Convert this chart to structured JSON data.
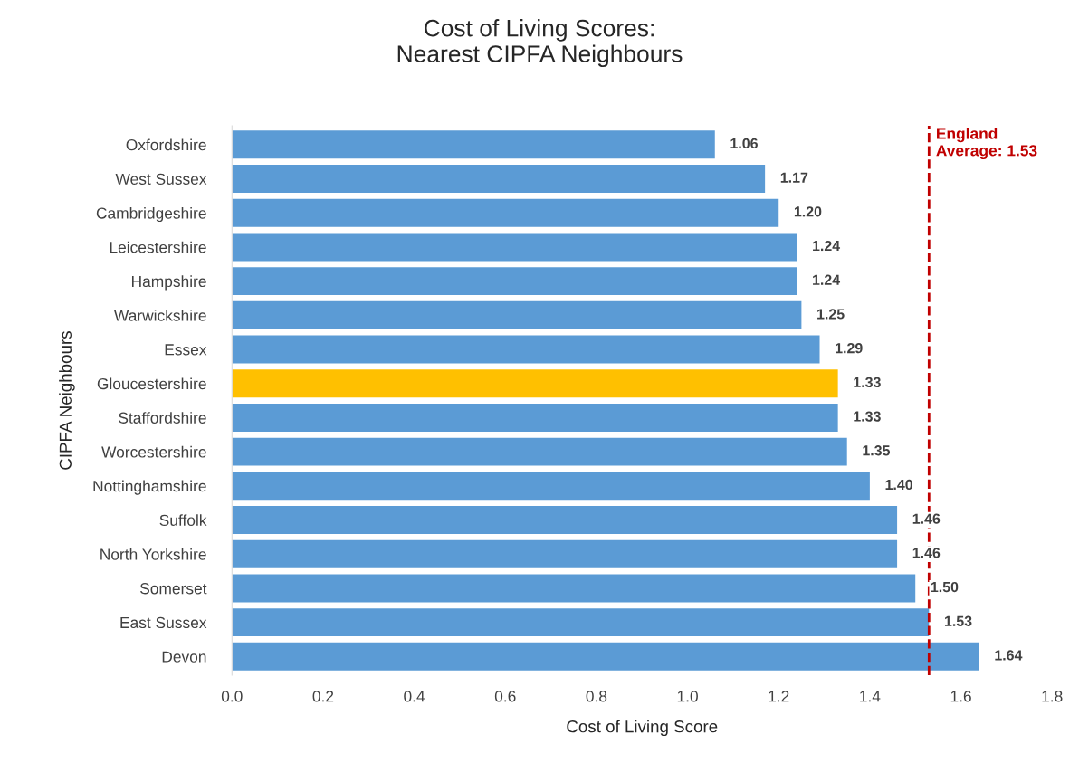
{
  "chart_data": {
    "type": "bar",
    "orientation": "horizontal",
    "title": "Cost of Living Scores:\nNearest CIPFA Neighbours",
    "xlabel": "Cost of Living Score",
    "ylabel": "CIPFA Neighbours",
    "categories": [
      "Oxfordshire",
      "West Sussex",
      "Cambridgeshire",
      "Leicestershire",
      "Hampshire",
      "Warwickshire",
      "Essex",
      "Gloucestershire",
      "Staffordshire",
      "Worcestershire",
      "Nottinghamshire",
      "Suffolk",
      "North Yorkshire",
      "Somerset",
      "East Sussex",
      "Devon"
    ],
    "values": [
      1.06,
      1.17,
      1.2,
      1.24,
      1.24,
      1.25,
      1.29,
      1.33,
      1.33,
      1.35,
      1.4,
      1.46,
      1.46,
      1.5,
      1.53,
      1.64
    ],
    "colors": [
      "#5b9bd5",
      "#5b9bd5",
      "#5b9bd5",
      "#5b9bd5",
      "#5b9bd5",
      "#5b9bd5",
      "#5b9bd5",
      "#ffc000",
      "#5b9bd5",
      "#5b9bd5",
      "#5b9bd5",
      "#5b9bd5",
      "#5b9bd5",
      "#5b9bd5",
      "#5b9bd5",
      "#5b9bd5"
    ],
    "value_labels": [
      "1.06",
      "1.17",
      "1.20",
      "1.24",
      "1.24",
      "1.25",
      "1.29",
      "1.33",
      "1.33",
      "1.35",
      "1.40",
      "1.46",
      "1.46",
      "1.50",
      "1.53",
      "1.64"
    ],
    "xlim": [
      0.0,
      1.8
    ],
    "xticks": [
      {
        "value": 0,
        "label": "0.0"
      },
      0.2,
      0.4,
      0.6,
      0.8,
      {
        "value": 1,
        "label": "1.0"
      },
      1.2,
      1.4,
      1.6,
      1.8
    ],
    "ref_lines": [
      {
        "axis": "x",
        "value": 1.53,
        "label": "England\nAverage: 1.53",
        "color": "#c00000",
        "line_style": "dashed"
      }
    ],
    "grid": false
  }
}
